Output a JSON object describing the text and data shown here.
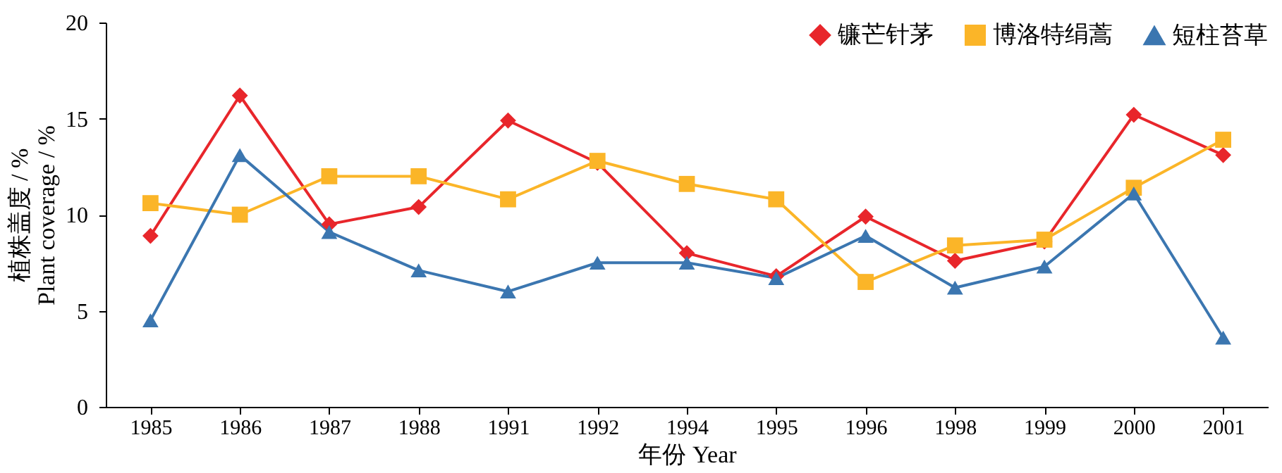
{
  "chart_data": {
    "type": "line",
    "xlabel": "年份 Year",
    "ylabel": "植株盖度 / %\nPlant coverage / %",
    "categories": [
      "1985",
      "1986",
      "1987",
      "1988",
      "1991",
      "1992",
      "1994",
      "1995",
      "1996",
      "1998",
      "1999",
      "2000",
      "2001"
    ],
    "ylim": [
      0,
      20
    ],
    "yticks": [
      0,
      5,
      10,
      15,
      20
    ],
    "grid": false,
    "legend": "top right",
    "line_style": "solid",
    "series": [
      {
        "name": "镰芒针茅",
        "color": "#e8262b",
        "marker": "diamond",
        "values": [
          8.9,
          16.2,
          9.5,
          10.4,
          14.9,
          12.7,
          8.0,
          6.8,
          9.9,
          7.6,
          8.6,
          15.2,
          13.1
        ]
      },
      {
        "name": "博洛特绢蒿",
        "color": "#fbb528",
        "marker": "square",
        "values": [
          10.6,
          10.0,
          12.0,
          12.0,
          10.8,
          12.8,
          11.6,
          10.8,
          6.5,
          8.4,
          8.7,
          11.4,
          13.9
        ]
      },
      {
        "name": "短柱苔草",
        "color": "#3b76b0",
        "marker": "triangle",
        "values": [
          4.5,
          13.1,
          9.1,
          7.1,
          6.0,
          7.5,
          7.5,
          6.7,
          8.9,
          6.2,
          7.3,
          11.1,
          3.6
        ]
      }
    ]
  }
}
